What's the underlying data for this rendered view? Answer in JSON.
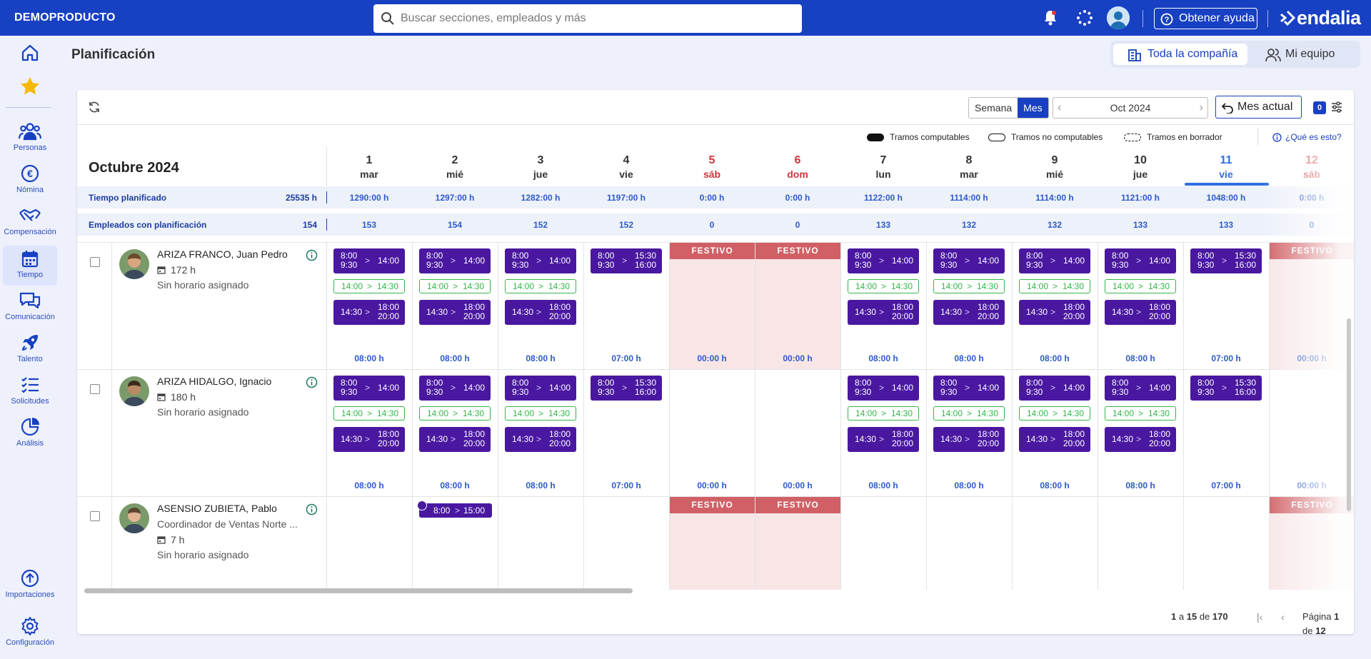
{
  "brand": "DEMOPRODUCTO",
  "search": {
    "placeholder": "Buscar secciones, empleados y más"
  },
  "header": {
    "help": "Obtener ayuda",
    "logo": "endalia"
  },
  "sidebar": {
    "items": [
      {
        "label": "",
        "icon": "home-icon"
      },
      {
        "label": "Personas",
        "icon": "people-icon"
      },
      {
        "label": "Nómina",
        "icon": "euro-icon"
      },
      {
        "label": "Compensación",
        "icon": "handshake-icon"
      },
      {
        "label": "Tiempo",
        "icon": "calendar-icon"
      },
      {
        "label": "Comunicación",
        "icon": "chat-icon"
      },
      {
        "label": "Talento",
        "icon": "rocket-icon"
      },
      {
        "label": "Solicitudes",
        "icon": "checklist-icon"
      },
      {
        "label": "Análisis",
        "icon": "pie-icon"
      },
      {
        "label": "Importaciones",
        "icon": "upload-icon"
      },
      {
        "label": "Configuración",
        "icon": "gear-icon"
      }
    ]
  },
  "page": {
    "title": "Planificación"
  },
  "scope": {
    "company": "Toda la compañía",
    "team": "Mi equipo"
  },
  "toolbar": {
    "week": "Semana",
    "month": "Mes",
    "period": "Oct 2024",
    "current_month": "Mes actual",
    "filter_count": "0"
  },
  "legend": {
    "computable": "Tramos computables",
    "non_computable": "Tramos no computables",
    "draft": "Tramos en borrador",
    "what": "¿Qué es esto?"
  },
  "grid": {
    "month_label": "Octubre 2024",
    "days": [
      {
        "num": "1",
        "name": "mar"
      },
      {
        "num": "2",
        "name": "mié"
      },
      {
        "num": "3",
        "name": "jue"
      },
      {
        "num": "4",
        "name": "vie"
      },
      {
        "num": "5",
        "name": "sáb"
      },
      {
        "num": "6",
        "name": "dom"
      },
      {
        "num": "7",
        "name": "lun"
      },
      {
        "num": "8",
        "name": "mar"
      },
      {
        "num": "9",
        "name": "mié"
      },
      {
        "num": "10",
        "name": "jue"
      },
      {
        "num": "11",
        "name": "vie"
      },
      {
        "num": "12",
        "name": "sáb"
      }
    ],
    "planned": {
      "label": "Tiempo planificado",
      "total": "25535 h",
      "values": [
        "1290:00 h",
        "1297:00 h",
        "1282:00 h",
        "1197:00 h",
        "0:00 h",
        "0:00 h",
        "1122:00 h",
        "1114:00 h",
        "1114:00 h",
        "1121:00 h",
        "1048:00 h",
        "0:00 h"
      ]
    },
    "employees": {
      "label": "Empleados con planificación",
      "total": "154",
      "values": [
        "153",
        "154",
        "152",
        "152",
        "0",
        "0",
        "133",
        "132",
        "132",
        "133",
        "133",
        "0"
      ]
    }
  },
  "shift_labels": {
    "m_start_a": "8:00",
    "m_start_b": "9:30",
    "m_end": "14:00",
    "f_start_a": "8:00",
    "f_start_b": "9:30",
    "f_end_a": "15:30",
    "f_end_b": "16:00",
    "brk_a": "14:00",
    "brk_b": "14:30",
    "a_start": "14:30",
    "a_end_a": "18:00",
    "a_end_b": "20:00",
    "t8": "08:00 h",
    "t7": "07:00 h",
    "t0": "00:00 h",
    "festivo": "FESTIVO",
    "pill_start": "8:00",
    "pill_end": "15:00"
  },
  "employees": [
    {
      "name": "ARIZA FRANCO, Juan Pedro",
      "role": "",
      "hours": "172 h",
      "schedule": "Sin horario asignado"
    },
    {
      "name": "ARIZA HIDALGO, Ignacio",
      "role": "",
      "hours": "180 h",
      "schedule": "Sin horario asignado"
    },
    {
      "name": "ASENSIO ZUBIETA, Pablo",
      "role": "Coordinador de Ventas Norte ...",
      "hours": "7 h",
      "schedule": "Sin horario asignado"
    }
  ],
  "pager": {
    "from": "1",
    "to": "15",
    "a": "a",
    "de": "de",
    "total": "170",
    "page_label": "Página",
    "page": "1",
    "pages": "12"
  }
}
